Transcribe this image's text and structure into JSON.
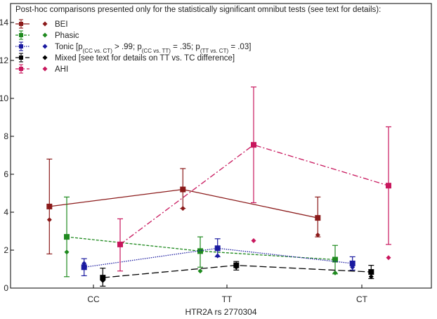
{
  "chart_data": {
    "type": "line",
    "xlabel": "HTR2A rs 2770304",
    "ylabel": "",
    "categories": [
      "CC",
      "TT",
      "CT"
    ],
    "ylim": [
      0,
      15
    ],
    "yticks": [
      0,
      2,
      4,
      6,
      8,
      10,
      12,
      14
    ],
    "grid": false,
    "legend_placement": "top-left",
    "legend_header": "Post-hoc comparisons presented only for the statistically significant omnibut tests (see text for details):",
    "series": [
      {
        "name": "BEI",
        "color": "#8b1a1a",
        "dash": "solid",
        "offset": -0.33,
        "mean_values": [
          4.3,
          5.2,
          3.7
        ],
        "ci_low": [
          1.8,
          4.2,
          2.7
        ],
        "ci_high": [
          6.8,
          6.3,
          4.8
        ],
        "median_values": [
          3.6,
          4.2,
          2.8
        ]
      },
      {
        "name": "Phasic",
        "color": "#1f8a1f",
        "dash": "short",
        "offset": -0.2,
        "mean_values": [
          2.7,
          1.95,
          1.5
        ],
        "ci_low": [
          0.6,
          1.1,
          0.75
        ],
        "ci_high": [
          4.8,
          2.7,
          2.25
        ],
        "median_values": [
          1.9,
          0.9,
          0.8
        ]
      },
      {
        "name": "Tonic",
        "label_parts": [
          {
            "t": "Tonic [p",
            "sub": false
          },
          {
            "t": "(CC vs. CT)",
            "sub": true
          },
          {
            "t": " > .99; p",
            "sub": false
          },
          {
            "t": "(CC vs. TT)",
            "sub": true
          },
          {
            "t": " = .35; p",
            "sub": false
          },
          {
            "t": "(TT vs. CT)",
            "sub": true
          },
          {
            "t": " = .03]",
            "sub": false
          }
        ],
        "color": "#1a1aa0",
        "dash": "dotted",
        "offset": -0.07,
        "mean_values": [
          1.1,
          2.1,
          1.3
        ],
        "ci_low": [
          0.65,
          1.65,
          0.95
        ],
        "ci_high": [
          1.55,
          2.6,
          1.65
        ],
        "median_values": [
          1.3,
          1.7,
          1.1
        ]
      },
      {
        "name": "Mixed [see text for details on TT vs. TC difference]",
        "color": "#000000",
        "dash": "long",
        "offset": 0.07,
        "mean_values": [
          0.55,
          1.2,
          0.85
        ],
        "ci_low": [
          0.1,
          0.95,
          0.5
        ],
        "ci_high": [
          1.05,
          1.4,
          1.2
        ],
        "median_values": [
          0.4,
          1.1,
          0.6
        ]
      },
      {
        "name": "AHI",
        "color": "#c8175d",
        "dash": "dashdot",
        "offset": 0.2,
        "mean_values": [
          2.3,
          7.55,
          5.4
        ],
        "ci_low": [
          0.9,
          4.5,
          2.3
        ],
        "ci_high": [
          3.65,
          10.6,
          8.5
        ],
        "median_values": [
          2.3,
          2.5,
          1.6
        ]
      }
    ]
  }
}
